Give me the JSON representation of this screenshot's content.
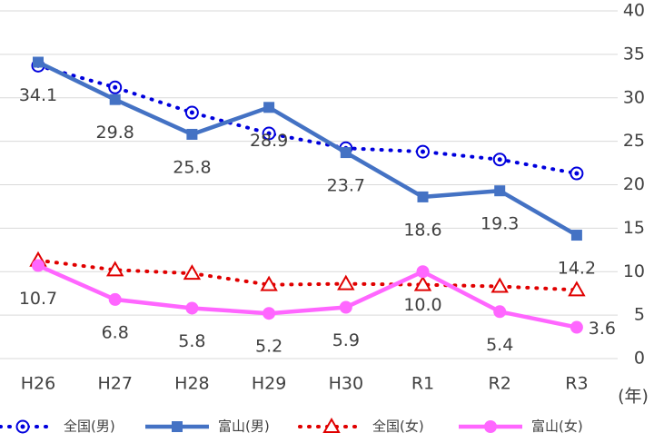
{
  "chart_data": {
    "type": "line",
    "categories": [
      "H26",
      "H27",
      "H28",
      "H29",
      "H30",
      "R1",
      "R2",
      "R3"
    ],
    "x_label": "(年)",
    "ylim": [
      0,
      40
    ],
    "yticks": [
      0,
      5,
      10,
      15,
      20,
      25,
      30,
      35,
      40
    ],
    "grid": true,
    "legend": "bottom",
    "series": [
      {
        "name": "全国(男)",
        "color": "#0000dd",
        "dashed": true,
        "marker": "circle-dot",
        "values": [
          33.7,
          31.2,
          28.3,
          25.9,
          24.2,
          23.8,
          22.9,
          21.3
        ]
      },
      {
        "name": "富山(男)",
        "color": "#4472c4",
        "dashed": false,
        "marker": "square",
        "values": [
          34.1,
          29.8,
          25.8,
          28.9,
          23.7,
          18.6,
          19.3,
          14.2
        ],
        "value_labels": [
          "34.1",
          "29.8",
          "25.8",
          "28.9",
          "23.7",
          "18.6",
          "19.3",
          "14.2"
        ]
      },
      {
        "name": "全国(女)",
        "color": "#e00000",
        "dashed": true,
        "marker": "triangle",
        "values": [
          11.3,
          10.2,
          9.8,
          8.5,
          8.6,
          8.5,
          8.3,
          7.9
        ]
      },
      {
        "name": "富山(女)",
        "color": "#ff66ff",
        "dashed": false,
        "marker": "circle",
        "values": [
          10.7,
          6.8,
          5.8,
          5.2,
          5.9,
          10.0,
          5.4,
          3.6
        ],
        "value_labels": [
          "10.7",
          "6.8",
          "5.8",
          "5.2",
          "5.9",
          "10.0",
          "5.4",
          "3.6"
        ]
      }
    ]
  }
}
